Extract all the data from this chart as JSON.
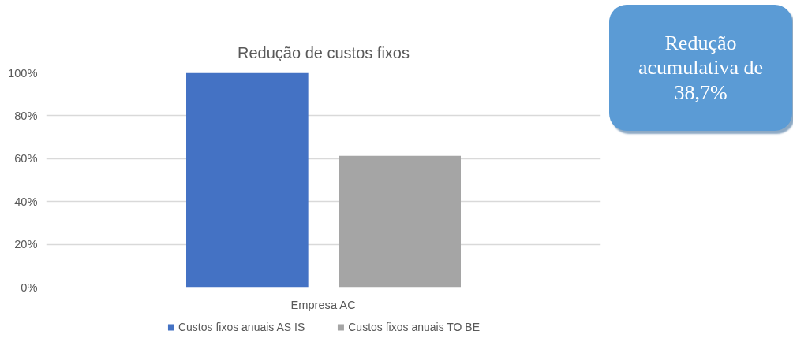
{
  "chart_data": {
    "type": "bar",
    "title": "Redução de custos fixos",
    "categories": [
      "Empresa AC"
    ],
    "series": [
      {
        "name": "Custos fixos anuais AS IS",
        "color": "#4472c4",
        "values": [
          100
        ]
      },
      {
        "name": "Custos fixos anuais TO BE",
        "color": "#a5a5a5",
        "values": [
          61.3
        ]
      }
    ],
    "ylim": [
      0,
      100
    ],
    "yticks": [
      {
        "value": 0,
        "label": "0%"
      },
      {
        "value": 20,
        "label": "20%"
      },
      {
        "value": 40,
        "label": "40%"
      },
      {
        "value": 60,
        "label": "60%"
      },
      {
        "value": 80,
        "label": "80%"
      },
      {
        "value": 100,
        "label": "100%"
      }
    ],
    "grid": "y",
    "legend": "bottom",
    "annotations": [
      "Redução\nacumulativa de\n38,7%"
    ]
  }
}
